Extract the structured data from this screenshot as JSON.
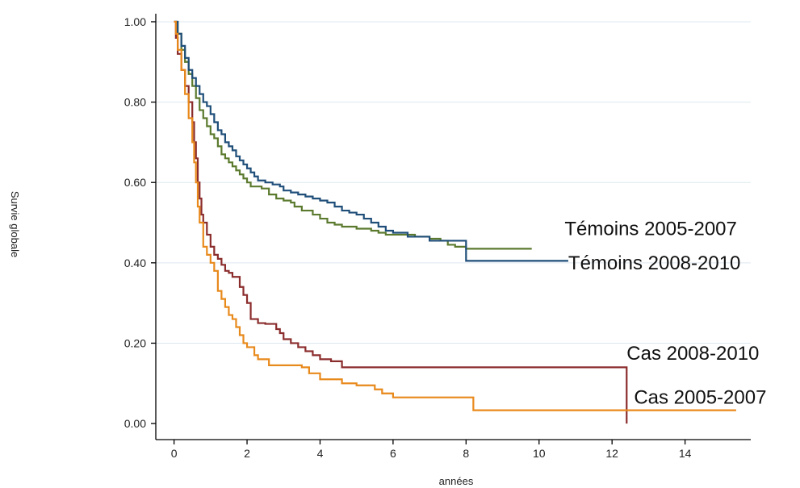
{
  "chart_data": {
    "type": "line",
    "title": "",
    "xlabel": "années",
    "ylabel": "Survie globale",
    "xlim": [
      -0.5,
      15.8
    ],
    "ylim": [
      -0.04,
      1.02
    ],
    "xticks": [
      0,
      2,
      4,
      6,
      8,
      10,
      12,
      14
    ],
    "xtick_labels": [
      "0",
      "2",
      "4",
      "6",
      "8",
      "10",
      "12",
      "14"
    ],
    "yticks": [
      0,
      0.2,
      0.4,
      0.6,
      0.8,
      1.0
    ],
    "ytick_labels": [
      "0.00",
      "0.20",
      "0.40",
      "0.60",
      "0.80",
      "1.00"
    ],
    "grid": true,
    "legend": "none",
    "series": [
      {
        "name": "Témoins 2005-2007",
        "color": "#5b7a2e",
        "label_anchor": [
          10.7,
          0.485
        ],
        "points": [
          [
            0,
            1.0
          ],
          [
            0.1,
            0.97
          ],
          [
            0.2,
            0.93
          ],
          [
            0.3,
            0.9
          ],
          [
            0.4,
            0.87
          ],
          [
            0.5,
            0.84
          ],
          [
            0.6,
            0.81
          ],
          [
            0.7,
            0.78
          ],
          [
            0.8,
            0.76
          ],
          [
            0.9,
            0.74
          ],
          [
            1.0,
            0.72
          ],
          [
            1.1,
            0.71
          ],
          [
            1.2,
            0.69
          ],
          [
            1.3,
            0.67
          ],
          [
            1.4,
            0.66
          ],
          [
            1.5,
            0.65
          ],
          [
            1.6,
            0.64
          ],
          [
            1.7,
            0.63
          ],
          [
            1.8,
            0.62
          ],
          [
            1.9,
            0.61
          ],
          [
            2.0,
            0.6
          ],
          [
            2.1,
            0.59
          ],
          [
            2.4,
            0.585
          ],
          [
            2.6,
            0.57
          ],
          [
            2.8,
            0.56
          ],
          [
            3.0,
            0.555
          ],
          [
            3.2,
            0.55
          ],
          [
            3.3,
            0.54
          ],
          [
            3.5,
            0.53
          ],
          [
            3.8,
            0.52
          ],
          [
            4.0,
            0.51
          ],
          [
            4.2,
            0.5
          ],
          [
            4.4,
            0.495
          ],
          [
            4.6,
            0.49
          ],
          [
            5.0,
            0.485
          ],
          [
            5.4,
            0.48
          ],
          [
            5.6,
            0.475
          ],
          [
            5.8,
            0.47
          ],
          [
            6.2,
            0.47
          ],
          [
            6.6,
            0.465
          ],
          [
            7.0,
            0.46
          ],
          [
            7.3,
            0.455
          ],
          [
            7.5,
            0.445
          ],
          [
            7.7,
            0.44
          ],
          [
            8.0,
            0.435
          ],
          [
            9.0,
            0.435
          ],
          [
            9.8,
            0.435
          ]
        ]
      },
      {
        "name": "Témoins 2008-2010",
        "color": "#1f4e79",
        "label_anchor": [
          10.8,
          0.4
        ],
        "points": [
          [
            0,
            1.0
          ],
          [
            0.1,
            0.97
          ],
          [
            0.2,
            0.94
          ],
          [
            0.3,
            0.91
          ],
          [
            0.4,
            0.88
          ],
          [
            0.5,
            0.86
          ],
          [
            0.6,
            0.84
          ],
          [
            0.7,
            0.82
          ],
          [
            0.8,
            0.8
          ],
          [
            0.9,
            0.79
          ],
          [
            1.0,
            0.77
          ],
          [
            1.1,
            0.75
          ],
          [
            1.2,
            0.73
          ],
          [
            1.3,
            0.72
          ],
          [
            1.4,
            0.7
          ],
          [
            1.5,
            0.69
          ],
          [
            1.6,
            0.68
          ],
          [
            1.7,
            0.665
          ],
          [
            1.8,
            0.655
          ],
          [
            1.9,
            0.645
          ],
          [
            2.0,
            0.635
          ],
          [
            2.1,
            0.625
          ],
          [
            2.2,
            0.615
          ],
          [
            2.3,
            0.605
          ],
          [
            2.5,
            0.6
          ],
          [
            2.7,
            0.595
          ],
          [
            2.9,
            0.59
          ],
          [
            3.0,
            0.58
          ],
          [
            3.2,
            0.575
          ],
          [
            3.4,
            0.57
          ],
          [
            3.6,
            0.565
          ],
          [
            3.8,
            0.56
          ],
          [
            4.0,
            0.555
          ],
          [
            4.2,
            0.55
          ],
          [
            4.4,
            0.54
          ],
          [
            4.6,
            0.53
          ],
          [
            4.8,
            0.525
          ],
          [
            5.0,
            0.52
          ],
          [
            5.2,
            0.51
          ],
          [
            5.4,
            0.5
          ],
          [
            5.6,
            0.49
          ],
          [
            5.8,
            0.48
          ],
          [
            6.0,
            0.475
          ],
          [
            6.2,
            0.475
          ],
          [
            6.4,
            0.465
          ],
          [
            7.0,
            0.455
          ],
          [
            8.0,
            0.405
          ],
          [
            10.8,
            0.405
          ]
        ]
      },
      {
        "name": "Cas 2008-2010",
        "color": "#8b2c2c",
        "label_anchor": [
          12.4,
          0.175
        ],
        "points": [
          [
            0,
            1.0
          ],
          [
            0.05,
            0.96
          ],
          [
            0.1,
            0.92
          ],
          [
            0.2,
            0.88
          ],
          [
            0.3,
            0.84
          ],
          [
            0.4,
            0.8
          ],
          [
            0.5,
            0.75
          ],
          [
            0.55,
            0.7
          ],
          [
            0.6,
            0.66
          ],
          [
            0.65,
            0.6
          ],
          [
            0.7,
            0.56
          ],
          [
            0.75,
            0.52
          ],
          [
            0.8,
            0.5
          ],
          [
            0.9,
            0.47
          ],
          [
            1.0,
            0.44
          ],
          [
            1.1,
            0.42
          ],
          [
            1.2,
            0.41
          ],
          [
            1.3,
            0.395
          ],
          [
            1.4,
            0.38
          ],
          [
            1.5,
            0.375
          ],
          [
            1.6,
            0.365
          ],
          [
            1.8,
            0.34
          ],
          [
            1.9,
            0.32
          ],
          [
            2.0,
            0.3
          ],
          [
            2.1,
            0.26
          ],
          [
            2.3,
            0.25
          ],
          [
            2.5,
            0.248
          ],
          [
            2.8,
            0.235
          ],
          [
            2.9,
            0.225
          ],
          [
            3.0,
            0.21
          ],
          [
            3.2,
            0.2
          ],
          [
            3.4,
            0.19
          ],
          [
            3.6,
            0.18
          ],
          [
            3.8,
            0.17
          ],
          [
            4.0,
            0.16
          ],
          [
            4.3,
            0.155
          ],
          [
            4.6,
            0.14
          ],
          [
            5.0,
            0.14
          ],
          [
            6.0,
            0.14
          ],
          [
            8.0,
            0.14
          ],
          [
            10.0,
            0.14
          ],
          [
            12.4,
            0.14
          ],
          [
            12.4,
            0.0
          ]
        ]
      },
      {
        "name": "Cas 2005-2007",
        "color": "#e8891b",
        "label_anchor": [
          12.6,
          0.065
        ],
        "points": [
          [
            0,
            1.0
          ],
          [
            0.05,
            0.97
          ],
          [
            0.1,
            0.93
          ],
          [
            0.2,
            0.88
          ],
          [
            0.3,
            0.82
          ],
          [
            0.4,
            0.76
          ],
          [
            0.5,
            0.7
          ],
          [
            0.55,
            0.65
          ],
          [
            0.6,
            0.6
          ],
          [
            0.65,
            0.54
          ],
          [
            0.7,
            0.5
          ],
          [
            0.8,
            0.44
          ],
          [
            0.9,
            0.42
          ],
          [
            1.0,
            0.4
          ],
          [
            1.1,
            0.38
          ],
          [
            1.2,
            0.33
          ],
          [
            1.3,
            0.31
          ],
          [
            1.4,
            0.29
          ],
          [
            1.5,
            0.27
          ],
          [
            1.6,
            0.26
          ],
          [
            1.7,
            0.24
          ],
          [
            1.8,
            0.22
          ],
          [
            1.9,
            0.2
          ],
          [
            2.0,
            0.19
          ],
          [
            2.2,
            0.17
          ],
          [
            2.3,
            0.16
          ],
          [
            2.6,
            0.145
          ],
          [
            3.0,
            0.145
          ],
          [
            3.5,
            0.14
          ],
          [
            3.7,
            0.125
          ],
          [
            4.0,
            0.11
          ],
          [
            4.6,
            0.1
          ],
          [
            5.0,
            0.095
          ],
          [
            5.5,
            0.085
          ],
          [
            5.7,
            0.075
          ],
          [
            6.0,
            0.065
          ],
          [
            7.0,
            0.065
          ],
          [
            8.0,
            0.065
          ],
          [
            8.2,
            0.033
          ],
          [
            10.0,
            0.033
          ],
          [
            12.0,
            0.033
          ],
          [
            14.0,
            0.033
          ],
          [
            15.4,
            0.033
          ]
        ]
      }
    ]
  }
}
